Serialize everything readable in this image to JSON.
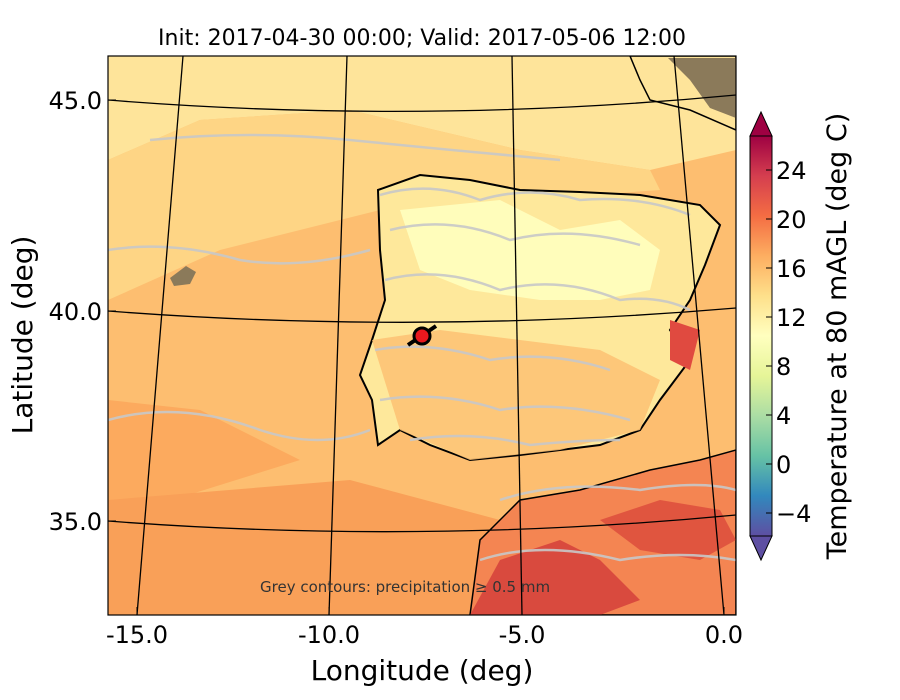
{
  "map": {
    "title": "Init: 2017-04-30 00:00; Valid: 2017-05-06 12:00",
    "xlabel": "Longitude (deg)",
    "ylabel": "Latitude (deg)",
    "x_ticks": [
      "-15.0",
      "-10.0",
      "-5.0",
      "0.0"
    ],
    "y_ticks": [
      "45.0",
      "40.0",
      "35.0"
    ],
    "annotation": "Grey contours: precipitation ≥ 0.5 mm",
    "marker": {
      "lon": -7.7,
      "lat": 39.3,
      "color": "#e8181e"
    }
  },
  "colorbar": {
    "label": "Temperature at 80 mAGL (deg C)",
    "ticks": [
      "−4",
      "0",
      "4",
      "8",
      "12",
      "16",
      "20",
      "24"
    ],
    "range": [
      -6,
      28
    ],
    "colormap": "Spectral_r",
    "colors": [
      "#5e4fa2",
      "#3288bd",
      "#66c2a5",
      "#abdda4",
      "#e6f598",
      "#ffffbf",
      "#fee08b",
      "#fdae61",
      "#f46d43",
      "#d53e4f",
      "#9e0142"
    ]
  }
}
